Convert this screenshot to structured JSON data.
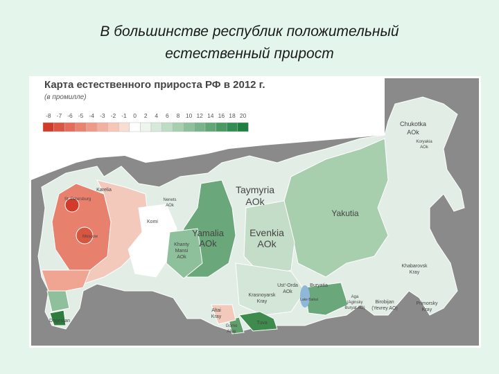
{
  "slide": {
    "title_lines": [
      "В большинстве республик положительный",
      "естественный прирост"
    ]
  },
  "map": {
    "title": "Карта естественного прироста РФ в 2012 г.",
    "subtitle": "(в промилле)",
    "legend": {
      "ticks": [
        -8,
        -7,
        -6,
        -5,
        -4,
        -3,
        -2,
        -1,
        0,
        2,
        4,
        6,
        8,
        10,
        12,
        14,
        16,
        18,
        20
      ],
      "colors": [
        "#d43a2a",
        "#dc5442",
        "#e36c5a",
        "#e98370",
        "#ee9a88",
        "#f2b0a0",
        "#f6c6b8",
        "#f9dcd2",
        "#ffffff",
        "#eef5ef",
        "#d6e9da",
        "#bfdcc5",
        "#a7cfad",
        "#8fc09c",
        "#78b38a",
        "#61a677",
        "#4a9965",
        "#338c53",
        "#1f7f42"
      ]
    },
    "regions": [
      "Chukotka",
      "AOk",
      "Koryakia",
      "AOk",
      "Karelia",
      "St. Petersburg",
      "Moscow",
      "Komi",
      "Nenets",
      "AOk",
      "Taymyria",
      "AOk",
      "Yakutia",
      "Yamalia",
      "AOk",
      "Evenkia",
      "AOk",
      "Khanty",
      "Mansi",
      "AOk",
      "Krasnoyarsk",
      "Kray",
      "Ust'-Orda",
      "AOk",
      "Buryatia",
      "Lake Baikal",
      "Khabarovsk",
      "Kray",
      "Birobijan",
      "(Yevrey AO)",
      "Primorsky",
      "Kray",
      "Aga",
      "(Aginsky",
      "Buryat AO)",
      "Altai",
      "Kray",
      "Gorno",
      "Altay",
      "Tuva",
      "Dagestan"
    ]
  }
}
